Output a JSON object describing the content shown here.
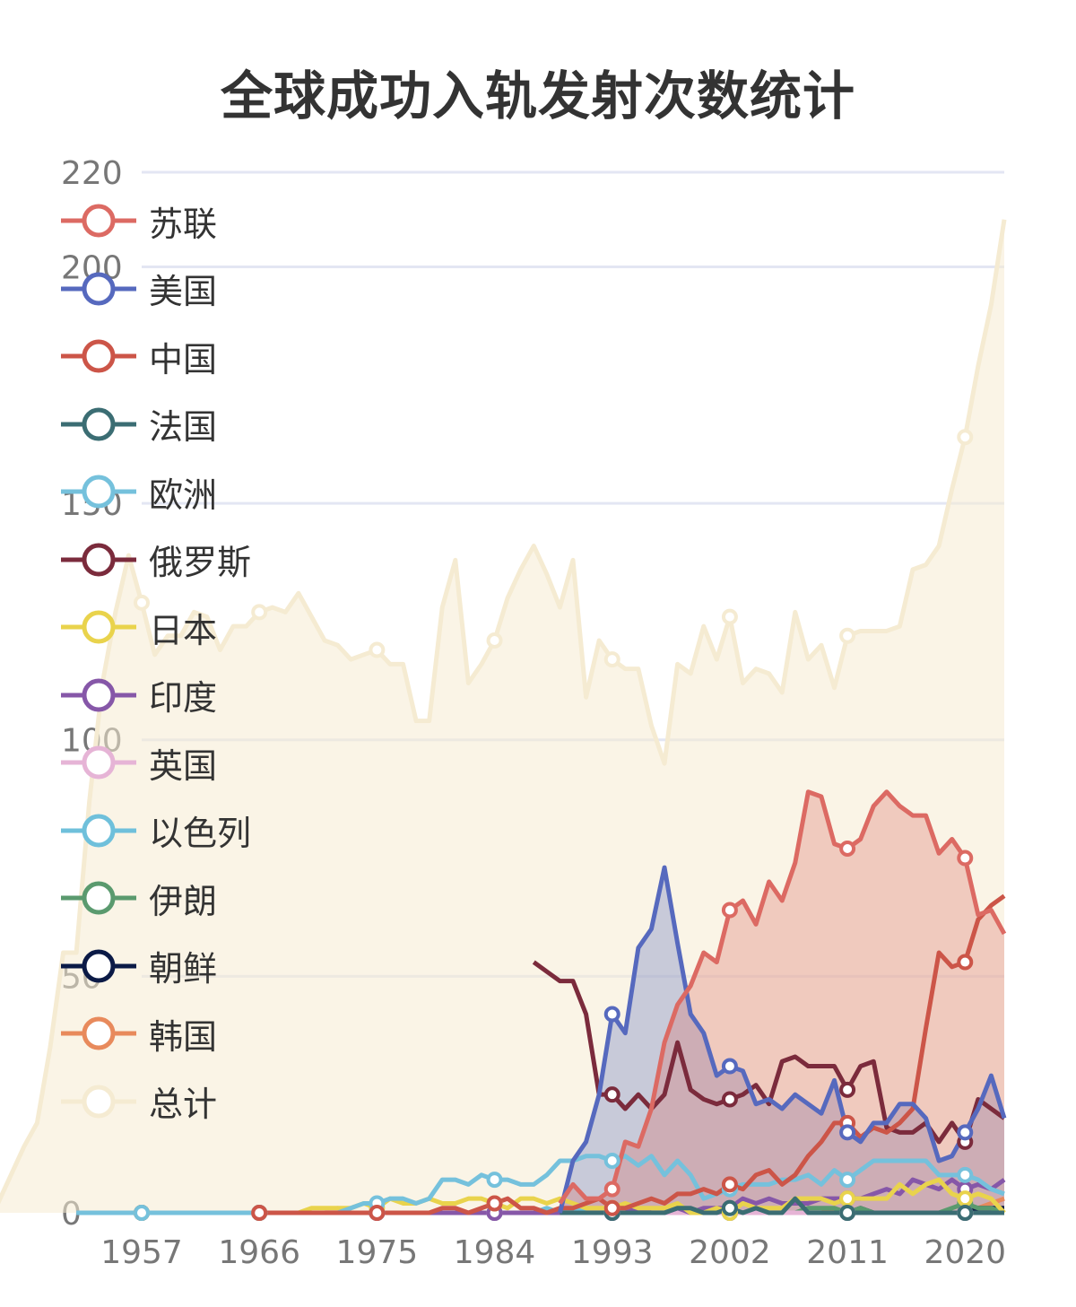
{
  "chart_data": {
    "type": "line",
    "title": "全球成功入轨发射次数统计",
    "ylim": [
      0,
      220
    ],
    "yticks": [
      0,
      50,
      100,
      150,
      200,
      220
    ],
    "x_start": 1957,
    "x_end": 2023,
    "xticks": [
      1957,
      1966,
      1975,
      1984,
      1993,
      2002,
      2011,
      2020
    ],
    "grid": true,
    "legend_position": "left, vertical list overlaying plot",
    "series": [
      {
        "name": "苏联",
        "color": "#dc6a63",
        "area": true,
        "values": [
          2,
          6,
          3,
          3,
          5,
          15,
          14,
          22,
          36,
          44,
          48,
          55,
          53,
          64,
          66,
          61,
          70,
          66,
          74,
          89,
          88,
          78,
          77,
          79,
          86,
          89,
          86,
          84,
          84,
          76,
          79,
          75,
          63,
          64,
          59
        ]
      },
      {
        "name": "美国",
        "color": "#5669be",
        "area": true,
        "values": [
          0,
          11,
          15,
          25,
          42,
          38,
          56,
          60,
          73,
          57,
          42,
          38,
          29,
          31,
          30,
          23,
          24,
          22,
          25,
          23,
          21,
          28,
          17,
          15,
          19,
          19,
          23,
          23,
          20,
          11,
          12,
          17,
          22,
          29,
          20
        ]
      },
      {
        "name": "中国",
        "color": "#cc5548",
        "area": false,
        "values": [
          0,
          0,
          0,
          0,
          0,
          0,
          0,
          0,
          0,
          0,
          0,
          0,
          0,
          0,
          1,
          1,
          0,
          1,
          2,
          3,
          1,
          1,
          0,
          1,
          1,
          2,
          3,
          1,
          1,
          2,
          3,
          2,
          4,
          4,
          5,
          4,
          6,
          5,
          8,
          9,
          6,
          8,
          12,
          15,
          19,
          19,
          16,
          18,
          17,
          19,
          22,
          39,
          55,
          52,
          53,
          62,
          65,
          67
        ]
      },
      {
        "name": "法国",
        "color": "#3b6d73",
        "area": false,
        "values": [
          0,
          0,
          0,
          0,
          0,
          0,
          0,
          0,
          0,
          1,
          1,
          0,
          0,
          1,
          0,
          1,
          0,
          0,
          3,
          0,
          0,
          0,
          0,
          0,
          0,
          0,
          0,
          0,
          0,
          0,
          0,
          0,
          0,
          0,
          0
        ]
      },
      {
        "name": "欧洲",
        "color": "#75c1dc",
        "area": false,
        "values": [
          0,
          0,
          0,
          0,
          0,
          0,
          0,
          0,
          0,
          0,
          0,
          0,
          0,
          0,
          0,
          0,
          0,
          0,
          0,
          0,
          0,
          1,
          2,
          2,
          3,
          3,
          2,
          3,
          7,
          7,
          6,
          8,
          7,
          7,
          6,
          6,
          8,
          11,
          11,
          12,
          12,
          11,
          12,
          10,
          12,
          8,
          11,
          8,
          3,
          4,
          5,
          6,
          6,
          6,
          7,
          7,
          8,
          6,
          9,
          7,
          9,
          11,
          11,
          11,
          11,
          11,
          8,
          8,
          8,
          7,
          5,
          4
        ]
      },
      {
        "name": "俄罗斯",
        "color": "#7b2b3c",
        "area": false,
        "values": [
          53,
          51,
          49,
          49,
          42,
          25,
          25,
          22,
          25,
          22,
          25,
          36,
          26,
          24,
          23,
          24,
          25,
          27,
          23,
          32,
          33,
          31,
          31,
          31,
          26,
          31,
          32,
          18,
          17,
          17,
          19,
          15,
          19,
          15,
          24,
          22,
          20
        ]
      },
      {
        "name": "日本",
        "color": "#e9d34c",
        "area": false,
        "values": [
          0,
          0,
          0,
          0,
          0,
          0,
          0,
          0,
          0,
          0,
          0,
          0,
          0,
          1,
          1,
          1,
          1,
          2,
          1,
          3,
          2,
          2,
          3,
          2,
          2,
          3,
          3,
          2,
          1,
          3,
          3,
          2,
          3,
          2,
          1,
          1,
          1,
          2,
          1,
          1,
          1,
          2,
          0,
          0,
          1,
          0,
          2,
          1,
          1,
          1,
          3,
          3,
          3,
          2,
          3,
          3,
          3,
          3,
          6,
          4,
          6,
          7,
          4,
          3,
          4,
          3,
          0
        ]
      },
      {
        "name": "印度",
        "color": "#8657a8",
        "area": false,
        "values": [
          0,
          0,
          0,
          0,
          0,
          0,
          0,
          0,
          0,
          0,
          0,
          0,
          0,
          0,
          0,
          0,
          0,
          0,
          0,
          0,
          0,
          0,
          0,
          0,
          0,
          0,
          0,
          0,
          0,
          0,
          0,
          0,
          0,
          0,
          0,
          0,
          0,
          0,
          0,
          0,
          0,
          0,
          1,
          0,
          0,
          1,
          0,
          1,
          1,
          1,
          3,
          2,
          3,
          2,
          2,
          2,
          3,
          3,
          3,
          3,
          4,
          5,
          4,
          7,
          6,
          5,
          7,
          5,
          6,
          5,
          7
        ]
      },
      {
        "name": "英国",
        "color": "#e6b4d6",
        "area": false,
        "values": [
          0,
          0,
          0,
          0,
          0,
          0,
          0,
          0,
          0,
          0,
          0,
          0,
          0,
          0,
          0,
          1,
          0,
          0,
          0,
          0,
          0,
          0,
          0,
          0,
          0,
          0,
          0,
          0,
          0,
          0,
          0,
          0,
          0,
          0,
          0,
          0,
          0,
          0,
          0,
          0,
          0,
          0,
          0,
          0,
          0,
          0,
          0,
          0,
          0,
          0,
          0,
          0,
          0,
          0,
          0,
          0,
          0,
          0,
          0,
          0,
          0,
          0,
          0,
          0,
          0,
          0,
          0
        ]
      },
      {
        "name": "以色列",
        "color": "#6fc0db",
        "area": false,
        "values": [
          0,
          0,
          0,
          0,
          0,
          0,
          0,
          0,
          0,
          0,
          0,
          0,
          0,
          0,
          0,
          0,
          0,
          0,
          0,
          0,
          0,
          0,
          0,
          0,
          0,
          0,
          0,
          0,
          0,
          0,
          0,
          1,
          0,
          1,
          0,
          0,
          0,
          0,
          0,
          0,
          0,
          0,
          0,
          0,
          0,
          0,
          0,
          0,
          0,
          0,
          0,
          0,
          0,
          0,
          0,
          0,
          0,
          0,
          0,
          0,
          0,
          0,
          0,
          0,
          0,
          0,
          0
        ]
      },
      {
        "name": "伊朗",
        "color": "#5a9a6e",
        "area": false,
        "values": [
          0,
          0,
          0,
          0,
          0,
          0,
          0,
          0,
          0,
          0,
          0,
          0,
          0,
          0,
          0,
          0,
          0,
          0,
          0,
          0,
          0,
          0,
          0,
          0,
          0,
          0,
          0,
          0,
          0,
          0,
          0,
          0,
          0,
          0,
          0,
          0,
          0,
          0,
          0,
          0,
          0,
          0,
          0,
          0,
          0,
          0,
          0,
          0,
          0,
          0,
          0,
          0,
          0,
          1,
          1,
          1,
          0,
          1,
          0,
          0,
          0,
          0,
          0,
          0,
          1,
          2,
          1,
          1,
          0
        ]
      },
      {
        "name": "朝鲜",
        "color": "#0b1a46",
        "area": false,
        "values": [
          0,
          0,
          0,
          0,
          0,
          0,
          0,
          0,
          0,
          0,
          0,
          0,
          0,
          0,
          0,
          0,
          0,
          0,
          0,
          0,
          0,
          0,
          0,
          0,
          0,
          0,
          0,
          0,
          0,
          0,
          0,
          0,
          0,
          0,
          0,
          0,
          0,
          0,
          0,
          0,
          0,
          0,
          0,
          0,
          0,
          0,
          0,
          0,
          0,
          0,
          0,
          0,
          0,
          0,
          0,
          0,
          1,
          0,
          0,
          0,
          0,
          0,
          0,
          0,
          0,
          1,
          1,
          1
        ]
      },
      {
        "name": "韩国",
        "color": "#e88a5c",
        "area": false,
        "values": [
          0,
          0,
          0,
          0,
          0,
          0,
          0,
          0,
          0,
          0,
          0,
          0,
          0,
          0,
          0,
          0,
          0,
          0,
          0,
          0,
          0,
          0,
          0,
          0,
          0,
          0,
          0,
          0,
          0,
          0,
          0,
          0,
          0,
          0,
          0,
          0,
          0,
          0,
          0,
          0,
          0,
          0,
          0,
          0,
          0,
          0,
          0,
          0,
          0,
          0,
          0,
          0,
          0,
          0,
          0,
          0,
          1,
          0,
          0,
          0,
          0,
          0,
          0,
          0,
          0,
          0,
          0,
          1,
          2,
          3
        ]
      },
      {
        "name": "总计",
        "color": "#f5ebd2",
        "area": true,
        "values": [
          2,
          8,
          14,
          19,
          35,
          55,
          55,
          87,
          112,
          127,
          139,
          129,
          118,
          122,
          122,
          127,
          126,
          119,
          124,
          124,
          127,
          128,
          127,
          131,
          126,
          121,
          120,
          117,
          118,
          119,
          116,
          116,
          104,
          104,
          128,
          138,
          112,
          116,
          121,
          130,
          136,
          141,
          135,
          128,
          138,
          109,
          121,
          117,
          115,
          115,
          103,
          95,
          116,
          114,
          124,
          117,
          126,
          112,
          115,
          114,
          110,
          127,
          117,
          120,
          111,
          122,
          123,
          123,
          123,
          124,
          136,
          137,
          141,
          153,
          164,
          179,
          192,
          210
        ]
      }
    ]
  }
}
